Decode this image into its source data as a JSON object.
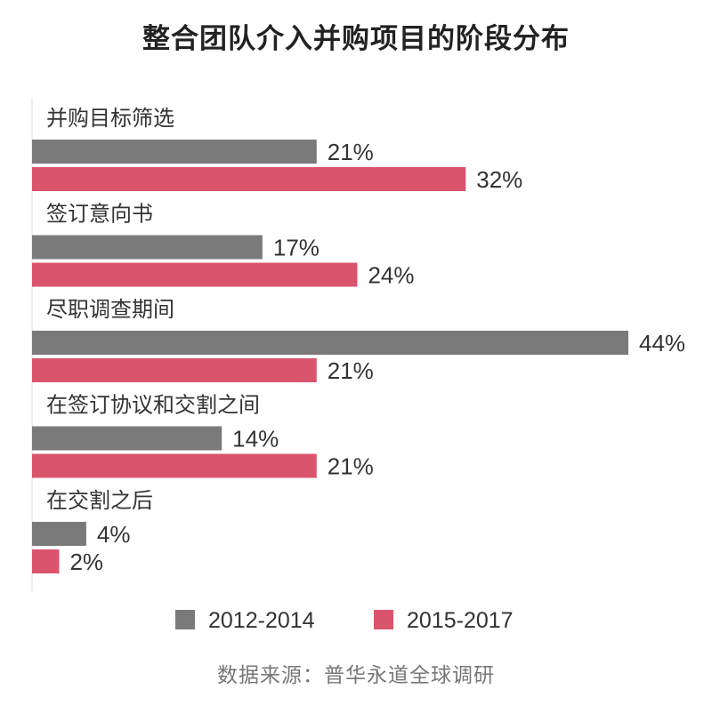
{
  "chart_data": {
    "type": "bar",
    "orientation": "horizontal",
    "title": "整合团队介入并购项目的阶段分布",
    "categories": [
      "并购目标筛选",
      "签订意向书",
      "尽职调查期间",
      "在签订协议和交割之间",
      "在交割之后"
    ],
    "series": [
      {
        "name": "2012-2014",
        "color": "#7a7a7a",
        "values": [
          21,
          17,
          44,
          14,
          4
        ],
        "labels": [
          "21%",
          "17%",
          "44%",
          "14%",
          "4%"
        ]
      },
      {
        "name": "2015-2017",
        "color": "#d9546c",
        "values": [
          32,
          24,
          21,
          21,
          2
        ],
        "labels": [
          "32%",
          "24%",
          "21%",
          "21%",
          "2%"
        ]
      }
    ],
    "unit": "%",
    "grid": false,
    "legend_position": "bottom",
    "source": "数据来源：普华永道全球调研"
  }
}
